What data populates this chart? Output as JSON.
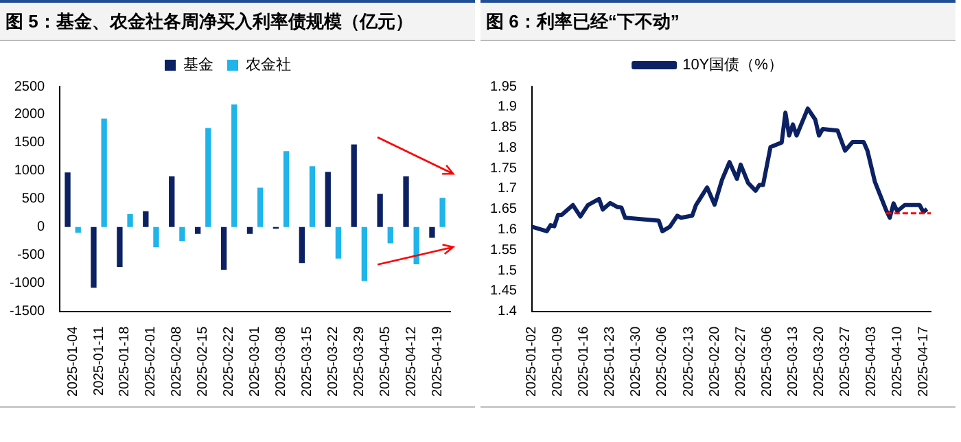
{
  "chart_data": [
    {
      "type": "bar",
      "title": "图 5：基金、农金社各周净买入利率债规模（亿元）",
      "legend": "top",
      "categories": [
        "2025-01-04",
        "2025-01-11",
        "2025-01-18",
        "2025-02-01",
        "2025-02-08",
        "2025-02-15",
        "2025-02-22",
        "2025-03-01",
        "2025-03-08",
        "2025-03-15",
        "2025-03-22",
        "2025-03-29",
        "2025-04-05",
        "2025-04-12",
        "2025-04-19"
      ],
      "series": [
        {
          "name": "基金",
          "color": "#0b2163",
          "values": [
            970,
            -1080,
            -710,
            280,
            900,
            -120,
            -760,
            -120,
            -30,
            -640,
            980,
            1470,
            590,
            900,
            -190
          ]
        },
        {
          "name": "农金社",
          "color": "#1fb4ea",
          "values": [
            -100,
            1930,
            230,
            -360,
            -250,
            1760,
            2180,
            700,
            1350,
            1080,
            -560,
            -960,
            -290,
            -660,
            520
          ]
        }
      ],
      "ylim": [
        -1500,
        2500
      ],
      "yticks": [
        -1500,
        -1000,
        -500,
        0,
        500,
        1000,
        1500,
        2000,
        2500
      ],
      "grid": false
    },
    {
      "type": "line",
      "title": "图 6：利率已经“下不动”",
      "legend": "top",
      "grid": false,
      "xlim": [
        "2025-01-02",
        "2025-04-19"
      ],
      "xticks": [
        "2025-01-02",
        "2025-01-09",
        "2025-01-16",
        "2025-01-23",
        "2025-01-30",
        "2025-02-06",
        "2025-02-13",
        "2025-02-20",
        "2025-02-27",
        "2025-03-06",
        "2025-03-13",
        "2025-03-20",
        "2025-03-27",
        "2025-04-03",
        "2025-04-10",
        "2025-04-17"
      ],
      "ylim": [
        1.4,
        1.95
      ],
      "yticks": [
        1.4,
        1.45,
        1.5,
        1.55,
        1.6,
        1.65,
        1.7,
        1.75,
        1.8,
        1.85,
        1.9,
        1.95
      ],
      "series": [
        {
          "name": "10Y国债（%）",
          "color": "#0b2163",
          "line_style": "solid",
          "x": [
            "2025-01-02",
            "2025-01-06",
            "2025-01-07",
            "2025-01-08",
            "2025-01-09",
            "2025-01-10",
            "2025-01-13",
            "2025-01-15",
            "2025-01-17",
            "2025-01-20",
            "2025-01-21",
            "2025-01-23",
            "2025-01-25",
            "2025-01-26",
            "2025-01-27",
            "2025-02-05",
            "2025-02-06",
            "2025-02-08",
            "2025-02-10",
            "2025-02-11",
            "2025-02-14",
            "2025-02-15",
            "2025-02-18",
            "2025-02-20",
            "2025-02-22",
            "2025-02-24",
            "2025-02-26",
            "2025-02-27",
            "2025-03-01",
            "2025-03-03",
            "2025-03-04",
            "2025-03-05",
            "2025-03-07",
            "2025-03-10",
            "2025-03-11",
            "2025-03-12",
            "2025-03-13",
            "2025-03-14",
            "2025-03-17",
            "2025-03-19",
            "2025-03-20",
            "2025-03-21",
            "2025-03-25",
            "2025-03-27",
            "2025-03-29",
            "2025-04-01",
            "2025-04-02",
            "2025-04-04",
            "2025-04-07",
            "2025-04-08",
            "2025-04-09",
            "2025-04-10",
            "2025-04-12",
            "2025-04-16",
            "2025-04-17",
            "2025-04-18"
          ],
          "values": [
            1.607,
            1.596,
            1.611,
            1.608,
            1.636,
            1.636,
            1.66,
            1.632,
            1.66,
            1.675,
            1.649,
            1.665,
            1.655,
            1.654,
            1.629,
            1.622,
            1.596,
            1.607,
            1.634,
            1.629,
            1.634,
            1.66,
            1.703,
            1.661,
            1.722,
            1.765,
            1.724,
            1.759,
            1.714,
            1.695,
            1.709,
            1.709,
            1.802,
            1.813,
            1.886,
            1.83,
            1.857,
            1.83,
            1.896,
            1.869,
            1.83,
            1.846,
            1.842,
            1.793,
            1.814,
            1.814,
            1.793,
            1.717,
            1.648,
            1.629,
            1.664,
            1.645,
            1.66,
            1.66,
            1.643,
            1.65
          ]
        },
        {
          "color": "#ff0000",
          "line_style": "dashed",
          "x": [
            "2025-04-07",
            "2025-04-19"
          ],
          "values": [
            1.64,
            1.64
          ]
        }
      ]
    }
  ]
}
